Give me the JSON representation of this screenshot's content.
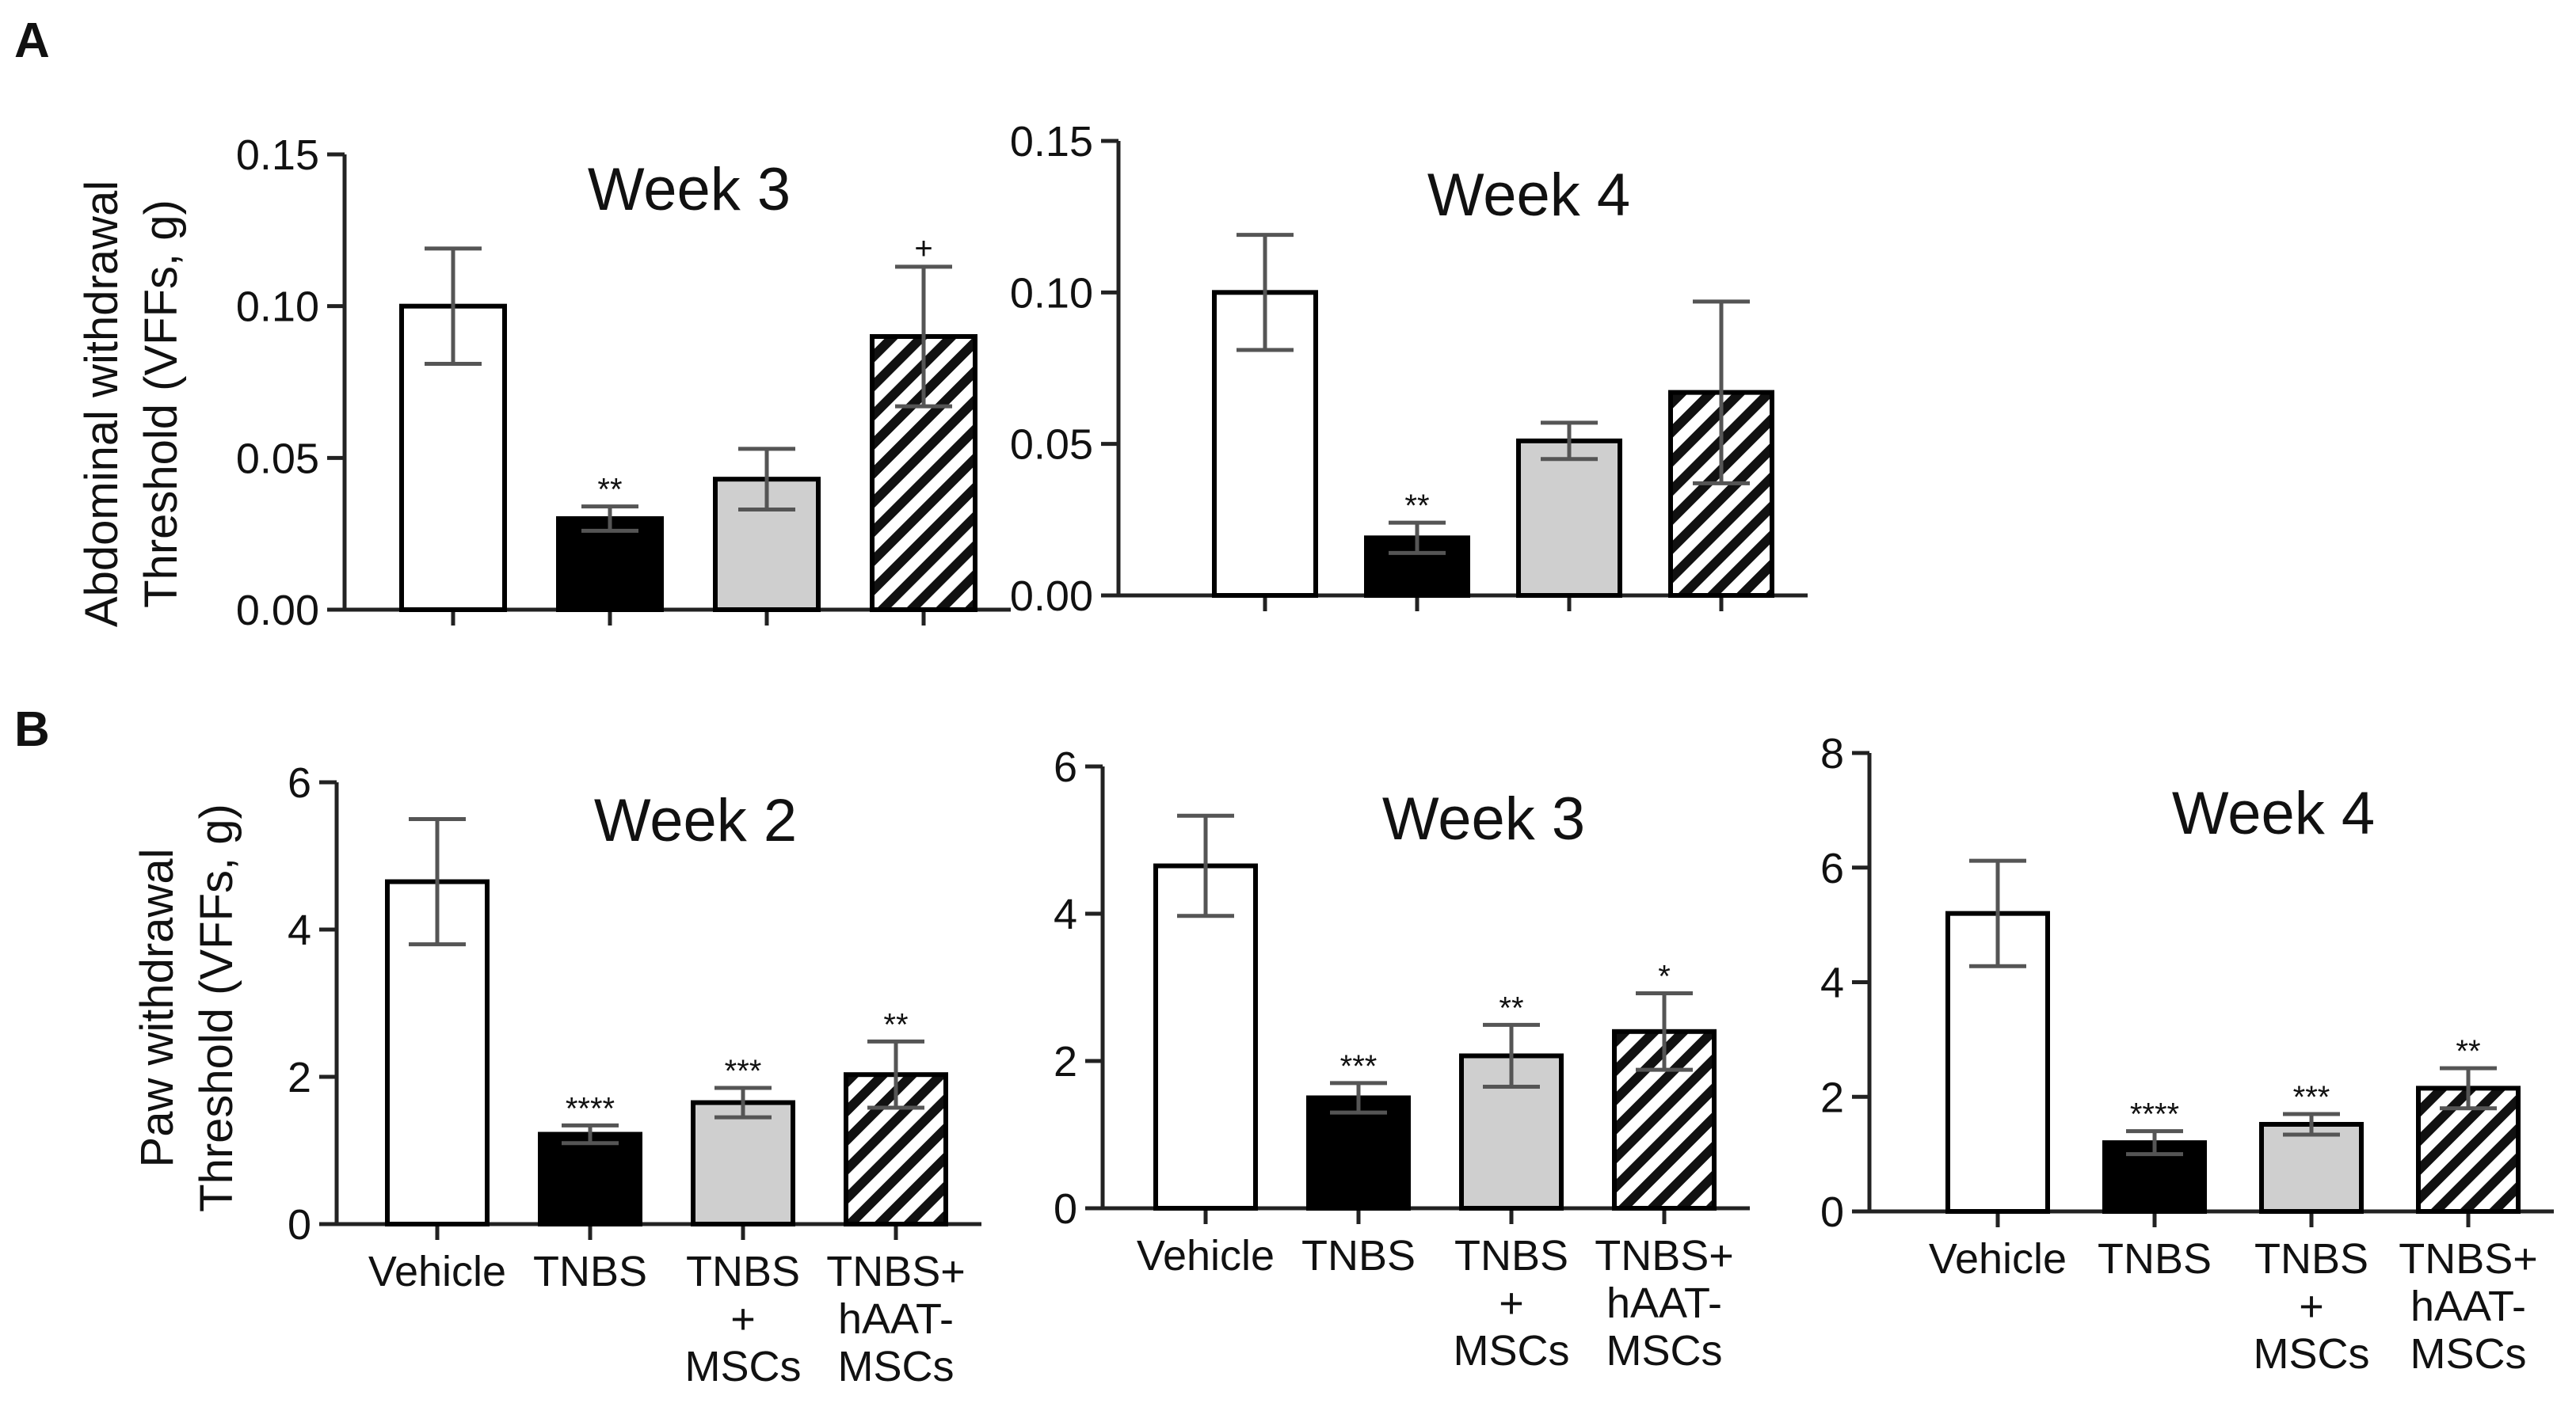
{
  "panels": {
    "A": "A",
    "B": "B"
  },
  "colors": {
    "vehicle": "#ffffff",
    "tnbs": "#000000",
    "tnbs_mscs": "#cfcfcf",
    "tnbs_haat": "hatch",
    "outline": "#000000",
    "error": "#555555"
  },
  "y_labels": {
    "A": [
      "Abdominal withdrawal",
      "Threshold (VFFs, g)"
    ],
    "B": [
      "Paw withdrawal",
      "Threshold (VFFs, g)"
    ]
  },
  "categories": [
    [
      "Vehicle"
    ],
    [
      "TNBS"
    ],
    [
      "TNBS",
      "+",
      "MSCs"
    ],
    [
      "TNBS+",
      "hAAT-",
      "MSCs"
    ]
  ],
  "chart_data": [
    {
      "id": "A-week3",
      "type": "bar",
      "title": "Week 3",
      "ylabel": "Abdominal withdrawal Threshold (VFFs, g)",
      "ylim": [
        0,
        0.15
      ],
      "yticks": [
        "0.00",
        "0.05",
        "0.10",
        "0.15"
      ],
      "categories": [
        "Vehicle",
        "TNBS",
        "TNBS + MSCs",
        "TNBS+ hAAT-MSCs"
      ],
      "values": [
        0.1,
        0.03,
        0.043,
        0.09
      ],
      "errors": [
        0.019,
        0.004,
        0.01,
        0.023
      ],
      "annotations": [
        "",
        "**",
        "",
        "+"
      ]
    },
    {
      "id": "A-week4",
      "type": "bar",
      "title": "Week 4",
      "ylabel": "Abdominal withdrawal Threshold (VFFs, g)",
      "ylim": [
        0,
        0.15
      ],
      "yticks": [
        "0.00",
        "0.05",
        "0.10",
        "0.15"
      ],
      "categories": [
        "Vehicle",
        "TNBS",
        "TNBS + MSCs",
        "TNBS+ hAAT-MSCs"
      ],
      "values": [
        0.1,
        0.019,
        0.051,
        0.067
      ],
      "errors": [
        0.019,
        0.005,
        0.006,
        0.03
      ],
      "annotations": [
        "",
        "**",
        "",
        ""
      ]
    },
    {
      "id": "B-week2",
      "type": "bar",
      "title": "Week 2",
      "ylabel": "Paw withdrawal Threshold (VFFs, g)",
      "ylim": [
        0,
        6
      ],
      "yticks": [
        "0",
        "2",
        "4",
        "6"
      ],
      "categories": [
        "Vehicle",
        "TNBS",
        "TNBS + MSCs",
        "TNBS+ hAAT-MSCs"
      ],
      "values": [
        4.65,
        1.22,
        1.65,
        2.03
      ],
      "errors": [
        0.85,
        0.12,
        0.2,
        0.45
      ],
      "annotations": [
        "",
        "****",
        "***",
        "**"
      ]
    },
    {
      "id": "B-week3",
      "type": "bar",
      "title": "Week 3",
      "ylabel": "Paw withdrawal Threshold (VFFs, g)",
      "ylim": [
        0,
        6
      ],
      "yticks": [
        "0",
        "2",
        "4",
        "6"
      ],
      "categories": [
        "Vehicle",
        "TNBS",
        "TNBS + MSCs",
        "TNBS+ hAAT-MSCs"
      ],
      "values": [
        4.65,
        1.5,
        2.07,
        2.4
      ],
      "errors": [
        0.68,
        0.2,
        0.42,
        0.52
      ],
      "annotations": [
        "",
        "***",
        "**",
        "*"
      ]
    },
    {
      "id": "B-week4",
      "type": "bar",
      "title": "Week 4",
      "ylabel": "Paw withdrawal Threshold (VFFs, g)",
      "ylim": [
        0,
        8
      ],
      "yticks": [
        "0",
        "2",
        "4",
        "6",
        "8"
      ],
      "categories": [
        "Vehicle",
        "TNBS",
        "TNBS + MSCs",
        "TNBS+ hAAT-MSCs"
      ],
      "values": [
        5.2,
        1.2,
        1.52,
        2.15
      ],
      "errors": [
        0.92,
        0.2,
        0.18,
        0.35
      ],
      "annotations": [
        "",
        "****",
        "***",
        "**"
      ]
    }
  ]
}
